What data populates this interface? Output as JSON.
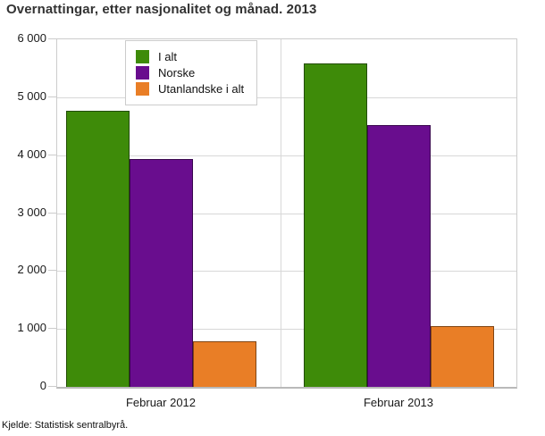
{
  "title": "Overnattingar, etter nasjonalitet og månad. 2013",
  "source": "Kjelde: Statistisk sentralbyrå.",
  "colors": {
    "background": "#ffffff",
    "gridline": "#d8d8d8",
    "plot_border": "#cccccc",
    "axis_line": "#b9b9b9",
    "title_text": "#333333",
    "label_text": "#1a1a1a"
  },
  "chart_data": {
    "type": "bar",
    "title": "Overnattingar, etter nasjonalitet og månad. 2013",
    "categories": [
      "Februar 2012",
      "Februar 2013"
    ],
    "series": [
      {
        "name": "I alt",
        "color": "#3e8b09",
        "values": [
          4760,
          5580
        ]
      },
      {
        "name": "Norske",
        "color": "#690d8e",
        "values": [
          3940,
          4520
        ]
      },
      {
        "name": "Utanlandske i alt",
        "color": "#e97e26",
        "values": [
          790,
          1050
        ]
      }
    ],
    "xlabel": "",
    "ylabel": "",
    "ylim": [
      0,
      6000
    ],
    "yticks": {
      "values": [
        0,
        1000,
        2000,
        3000,
        4000,
        5000,
        6000
      ],
      "labels": [
        "0",
        "1 000",
        "2 000",
        "3 000",
        "4 000",
        "5 000",
        "6 000"
      ]
    },
    "grid": true,
    "legend_position": "top-left",
    "source": "Kjelde: Statistisk sentralbyrå."
  }
}
